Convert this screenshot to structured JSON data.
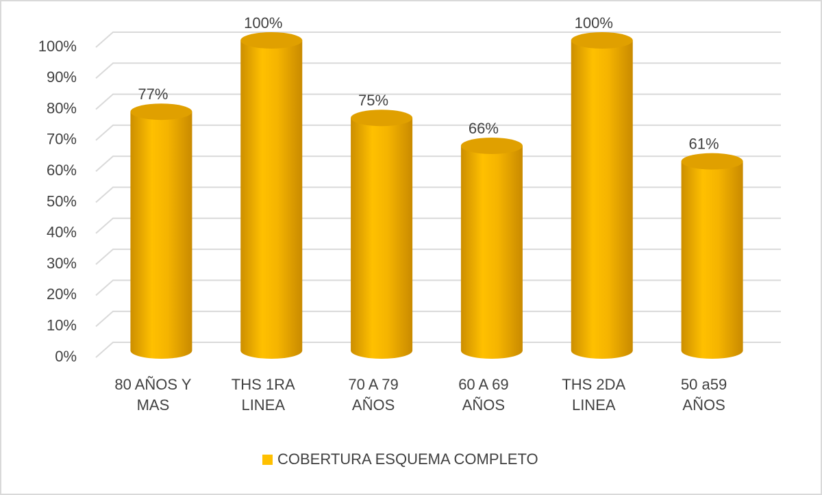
{
  "chart_data": {
    "type": "cylinder-bar",
    "categories": [
      "80 AÑOS Y\nMAS",
      "THS 1RA\nLINEA",
      "70 A 79\nAÑOS",
      "60 A 69\nAÑOS",
      "THS 2DA\nLINEA",
      "50 a59\nAÑOS"
    ],
    "series": [
      {
        "name": "COBERTURA ESQUEMA COMPLETO",
        "color": "#ffc000",
        "values": [
          77,
          100,
          75,
          66,
          100,
          61
        ],
        "value_labels": [
          "77%",
          "100%",
          "75%",
          "66%",
          "100%",
          "61%"
        ]
      }
    ],
    "ylim": [
      0,
      100
    ],
    "yticks": [
      {
        "value": 0,
        "label": "0%"
      },
      {
        "value": 10,
        "label": "10%"
      },
      {
        "value": 20,
        "label": "20%"
      },
      {
        "value": 30,
        "label": "30%"
      },
      {
        "value": 40,
        "label": "40%"
      },
      {
        "value": 50,
        "label": "50%"
      },
      {
        "value": 60,
        "label": "60%"
      },
      {
        "value": 70,
        "label": "70%"
      },
      {
        "value": 80,
        "label": "80%"
      },
      {
        "value": 90,
        "label": "90%"
      },
      {
        "value": 100,
        "label": "100%"
      }
    ],
    "grid": true,
    "legend": "bottom"
  }
}
